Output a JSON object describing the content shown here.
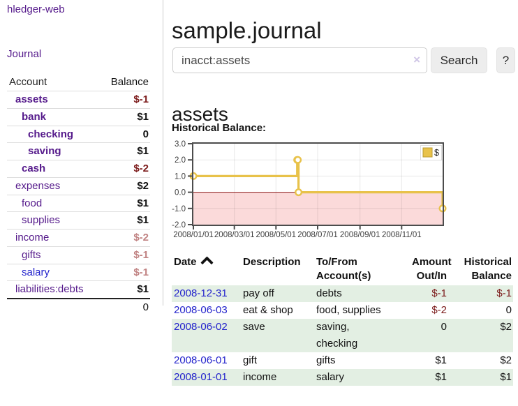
{
  "brand": "hledger-web",
  "colors": {
    "link_purple": "#551a8b",
    "link_blue": "#2323cc",
    "negative_dark": "#7b1a1a",
    "negative_pale": "#c08282",
    "row_stripe_green": "#e3efe3"
  },
  "sidebar": {
    "journal_link": "Journal",
    "accounts_table": {
      "headers": [
        "Account",
        "Balance"
      ],
      "rows": [
        {
          "name": "assets",
          "balance": "$-1",
          "indent": 1,
          "bold": true,
          "negative": true
        },
        {
          "name": "bank",
          "balance": "$1",
          "indent": 2,
          "bold": true,
          "negative": false
        },
        {
          "name": "checking",
          "balance": "0",
          "indent": 3,
          "bold": true,
          "negative": false
        },
        {
          "name": "saving",
          "balance": "$1",
          "indent": 3,
          "bold": true,
          "negative": false
        },
        {
          "name": "cash",
          "balance": "$-2",
          "indent": 2,
          "bold": true,
          "negative": true
        },
        {
          "name": "expenses",
          "balance": "$2",
          "indent": 1,
          "bold": false,
          "negative": false
        },
        {
          "name": "food",
          "balance": "$1",
          "indent": 2,
          "bold": false,
          "negative": false
        },
        {
          "name": "supplies",
          "balance": "$1",
          "indent": 2,
          "bold": false,
          "negative": false
        },
        {
          "name": "income",
          "balance": "$-2",
          "indent": 1,
          "bold": false,
          "negative": true
        },
        {
          "name": "gifts",
          "balance": "$-1",
          "indent": 2,
          "bold": false,
          "negative": true
        },
        {
          "name": "salary",
          "balance": "$-1",
          "indent": 2,
          "bold": false,
          "negative": true,
          "visited": false
        },
        {
          "name": "liabilities:debts",
          "balance": "$1",
          "indent": 1,
          "bold": false,
          "negative": false
        }
      ],
      "total": "0"
    }
  },
  "header": {
    "title": "sample.journal"
  },
  "search": {
    "value": "inacct:assets",
    "clear_icon": "×",
    "button_label": "Search",
    "help_label": "?"
  },
  "account_page": {
    "heading": "assets",
    "chart_label": "Historical Balance:"
  },
  "chart_data": {
    "type": "line",
    "step": true,
    "title": "Historical Balance:",
    "series": [
      {
        "name": "$",
        "color": "#e8c24a",
        "marker_fill": "#ffffff",
        "points": [
          [
            "2008-01-01",
            1
          ],
          [
            "2008-06-01",
            2
          ],
          [
            "2008-06-02",
            2
          ],
          [
            "2008-06-03",
            0
          ],
          [
            "2008-12-31",
            -1
          ]
        ]
      }
    ],
    "x_ticks": [
      "2008/01/01",
      "2008/03/01",
      "2008/05/01",
      "2008/07/01",
      "2008/09/01",
      "2008/11/01"
    ],
    "y_ticks": [
      3.0,
      2.0,
      1.0,
      0.0,
      -1.0,
      -2.0
    ],
    "xlim": [
      "2008-01-01",
      "2008-12-31"
    ],
    "ylim": [
      -2,
      3
    ],
    "grid": true,
    "legend": "$",
    "legend_position": "top-right",
    "negative_region_color": "#fbdada",
    "zero_line_color": "#8b1c1c",
    "border_color": "#4c4c4c"
  },
  "register": {
    "headers": [
      "Date",
      "Description",
      "To/From\nAccount(s)",
      "Amount\nOut/In",
      "Historical\nBalance"
    ],
    "sort": {
      "column": "Date",
      "direction": "asc"
    },
    "rows": [
      {
        "date": "2008-12-31",
        "description": "pay off",
        "accounts": "debts",
        "amount": "$-1",
        "amount_negative": true,
        "balance": "$-1",
        "balance_negative": true
      },
      {
        "date": "2008-06-03",
        "description": "eat & shop",
        "accounts": "food, supplies",
        "amount": "$-2",
        "amount_negative": true,
        "balance": "0",
        "balance_negative": false
      },
      {
        "date": "2008-06-02",
        "description": "save",
        "accounts": "saving,\nchecking",
        "amount": "0",
        "amount_negative": false,
        "balance": "$2",
        "balance_negative": false
      },
      {
        "date": "2008-06-01",
        "description": "gift",
        "accounts": "gifts",
        "amount": "$1",
        "amount_negative": false,
        "balance": "$2",
        "balance_negative": false
      },
      {
        "date": "2008-01-01",
        "description": "income",
        "accounts": "salary",
        "amount": "$1",
        "amount_negative": false,
        "balance": "$1",
        "balance_negative": false
      }
    ]
  }
}
